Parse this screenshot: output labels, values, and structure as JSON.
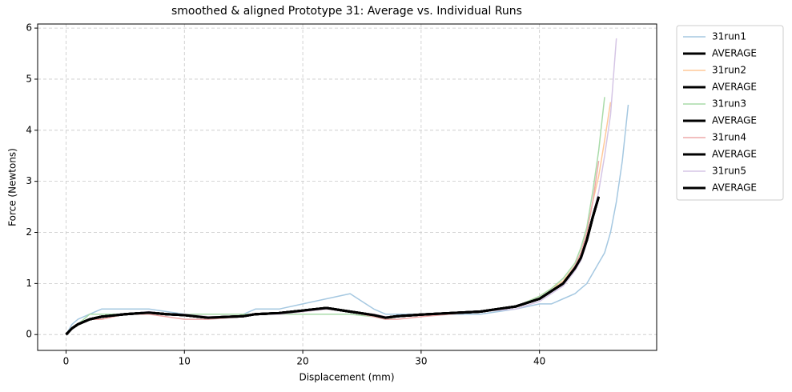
{
  "chart_data": {
    "type": "line",
    "title": "smoothed & aligned Prototype 31: Average vs. Individual Runs",
    "x_label": "Displacement (mm)",
    "y_label": "Force (Newtons)",
    "x": [
      0,
      0.5,
      1,
      2,
      3,
      5,
      7,
      8.5,
      10,
      12,
      15,
      16,
      18,
      20,
      22,
      24,
      26,
      27,
      28,
      30,
      35,
      38,
      40,
      41,
      42,
      43,
      43.5,
      44,
      44.5,
      45,
      45.5,
      46,
      46.5,
      47,
      47.5
    ],
    "series": [
      {
        "name": "31run1",
        "color": "#a5c8e1",
        "width": 1.5,
        "values": [
          0,
          0.2,
          0.3,
          0.4,
          0.5,
          0.5,
          0.5,
          0.45,
          0.4,
          0.4,
          0.4,
          0.5,
          0.5,
          0.6,
          0.7,
          0.8,
          0.5,
          0.4,
          0.4,
          0.4,
          0.4,
          0.5,
          0.6,
          0.6,
          0.7,
          0.8,
          0.9,
          1.0,
          1.2,
          1.4,
          1.6,
          2.0,
          2.6,
          3.4,
          4.5
        ]
      },
      {
        "name": "AVERAGE",
        "color": "#000000",
        "width": 3,
        "values": [
          0,
          0.12,
          0.2,
          0.3,
          0.35,
          0.4,
          0.43,
          0.4,
          0.38,
          0.33,
          0.36,
          0.4,
          0.42,
          0.47,
          0.52,
          0.45,
          0.38,
          0.33,
          0.36,
          0.39,
          0.45,
          0.55,
          0.7,
          0.85,
          1.0,
          1.3,
          1.5,
          1.85,
          2.3,
          2.7,
          null,
          null,
          null,
          null,
          null
        ]
      },
      {
        "name": "31run2",
        "color": "#ffc999",
        "width": 1.5,
        "values": [
          0,
          0.1,
          0.2,
          0.3,
          0.3,
          0.4,
          0.4,
          0.4,
          0.4,
          0.35,
          0.35,
          0.4,
          0.4,
          0.45,
          0.5,
          0.45,
          0.4,
          0.35,
          0.35,
          0.4,
          0.45,
          0.55,
          0.75,
          0.9,
          1.05,
          1.35,
          1.6,
          2.0,
          2.6,
          3.1,
          3.8,
          4.55,
          null,
          null,
          null
        ]
      },
      {
        "name": "AVERAGE",
        "color": "#000000",
        "width": 3,
        "values": [
          0,
          0.12,
          0.2,
          0.3,
          0.35,
          0.4,
          0.43,
          0.4,
          0.38,
          0.33,
          0.36,
          0.4,
          0.42,
          0.47,
          0.52,
          0.45,
          0.38,
          0.33,
          0.36,
          0.39,
          0.45,
          0.55,
          0.7,
          0.85,
          1.0,
          1.3,
          1.5,
          1.85,
          2.3,
          2.7,
          null,
          null,
          null,
          null,
          null
        ]
      },
      {
        "name": "31run3",
        "color": "#a9dba9",
        "width": 1.5,
        "values": [
          0,
          0.1,
          0.2,
          0.4,
          0.4,
          0.4,
          0.4,
          0.4,
          0.4,
          0.4,
          0.4,
          0.4,
          0.4,
          0.4,
          0.4,
          0.4,
          0.35,
          0.3,
          0.35,
          0.4,
          0.45,
          0.55,
          0.75,
          0.9,
          1.1,
          1.4,
          1.7,
          2.1,
          2.8,
          3.6,
          4.65,
          null,
          null,
          null,
          null
        ]
      },
      {
        "name": "AVERAGE",
        "color": "#000000",
        "width": 3,
        "values": [
          0,
          0.12,
          0.2,
          0.3,
          0.35,
          0.4,
          0.43,
          0.4,
          0.38,
          0.33,
          0.36,
          0.4,
          0.42,
          0.47,
          0.52,
          0.45,
          0.38,
          0.33,
          0.36,
          0.39,
          0.45,
          0.55,
          0.7,
          0.85,
          1.0,
          1.3,
          1.5,
          1.85,
          2.3,
          2.7,
          null,
          null,
          null,
          null,
          null
        ]
      },
      {
        "name": "31run4",
        "color": "#eeaaaa",
        "width": 1.5,
        "values": [
          0,
          0.1,
          0.2,
          0.3,
          0.3,
          0.4,
          0.4,
          0.35,
          0.3,
          0.3,
          0.35,
          0.4,
          0.4,
          0.45,
          0.5,
          0.45,
          0.35,
          0.3,
          0.3,
          0.35,
          0.45,
          0.55,
          0.7,
          0.85,
          1.0,
          1.35,
          1.6,
          2.0,
          2.6,
          3.4,
          null,
          null,
          null,
          null,
          null
        ]
      },
      {
        "name": "AVERAGE",
        "color": "#000000",
        "width": 3,
        "values": [
          0,
          0.12,
          0.2,
          0.3,
          0.35,
          0.4,
          0.43,
          0.4,
          0.38,
          0.33,
          0.36,
          0.4,
          0.42,
          0.47,
          0.52,
          0.45,
          0.38,
          0.33,
          0.36,
          0.39,
          0.45,
          0.55,
          0.7,
          0.85,
          1.0,
          1.3,
          1.5,
          1.85,
          2.3,
          2.7,
          null,
          null,
          null,
          null,
          null
        ]
      },
      {
        "name": "31run5",
        "color": "#d5c5e5",
        "width": 1.5,
        "values": [
          0,
          0.1,
          0.2,
          0.3,
          0.35,
          0.4,
          0.45,
          0.4,
          0.4,
          0.35,
          0.35,
          0.4,
          0.4,
          0.45,
          0.5,
          0.45,
          0.4,
          0.35,
          0.35,
          0.4,
          0.45,
          0.5,
          0.65,
          0.8,
          0.95,
          1.25,
          1.45,
          1.8,
          2.3,
          2.8,
          3.5,
          4.3,
          5.8,
          null,
          null
        ]
      },
      {
        "name": "AVERAGE",
        "color": "#000000",
        "width": 3,
        "values": [
          0,
          0.12,
          0.2,
          0.3,
          0.35,
          0.4,
          0.43,
          0.4,
          0.38,
          0.33,
          0.36,
          0.4,
          0.42,
          0.47,
          0.52,
          0.45,
          0.38,
          0.33,
          0.36,
          0.39,
          0.45,
          0.55,
          0.7,
          0.85,
          1.0,
          1.3,
          1.5,
          1.85,
          2.3,
          2.7,
          null,
          null,
          null,
          null,
          null
        ]
      }
    ],
    "xlim": [
      -2.4,
      49.9
    ],
    "ylim": [
      -0.31,
      6.08
    ],
    "xticks": [
      0,
      10,
      20,
      30,
      40
    ],
    "yticks": [
      0,
      1,
      2,
      3,
      4,
      5,
      6
    ],
    "grid": true,
    "legend": "outside-right"
  }
}
